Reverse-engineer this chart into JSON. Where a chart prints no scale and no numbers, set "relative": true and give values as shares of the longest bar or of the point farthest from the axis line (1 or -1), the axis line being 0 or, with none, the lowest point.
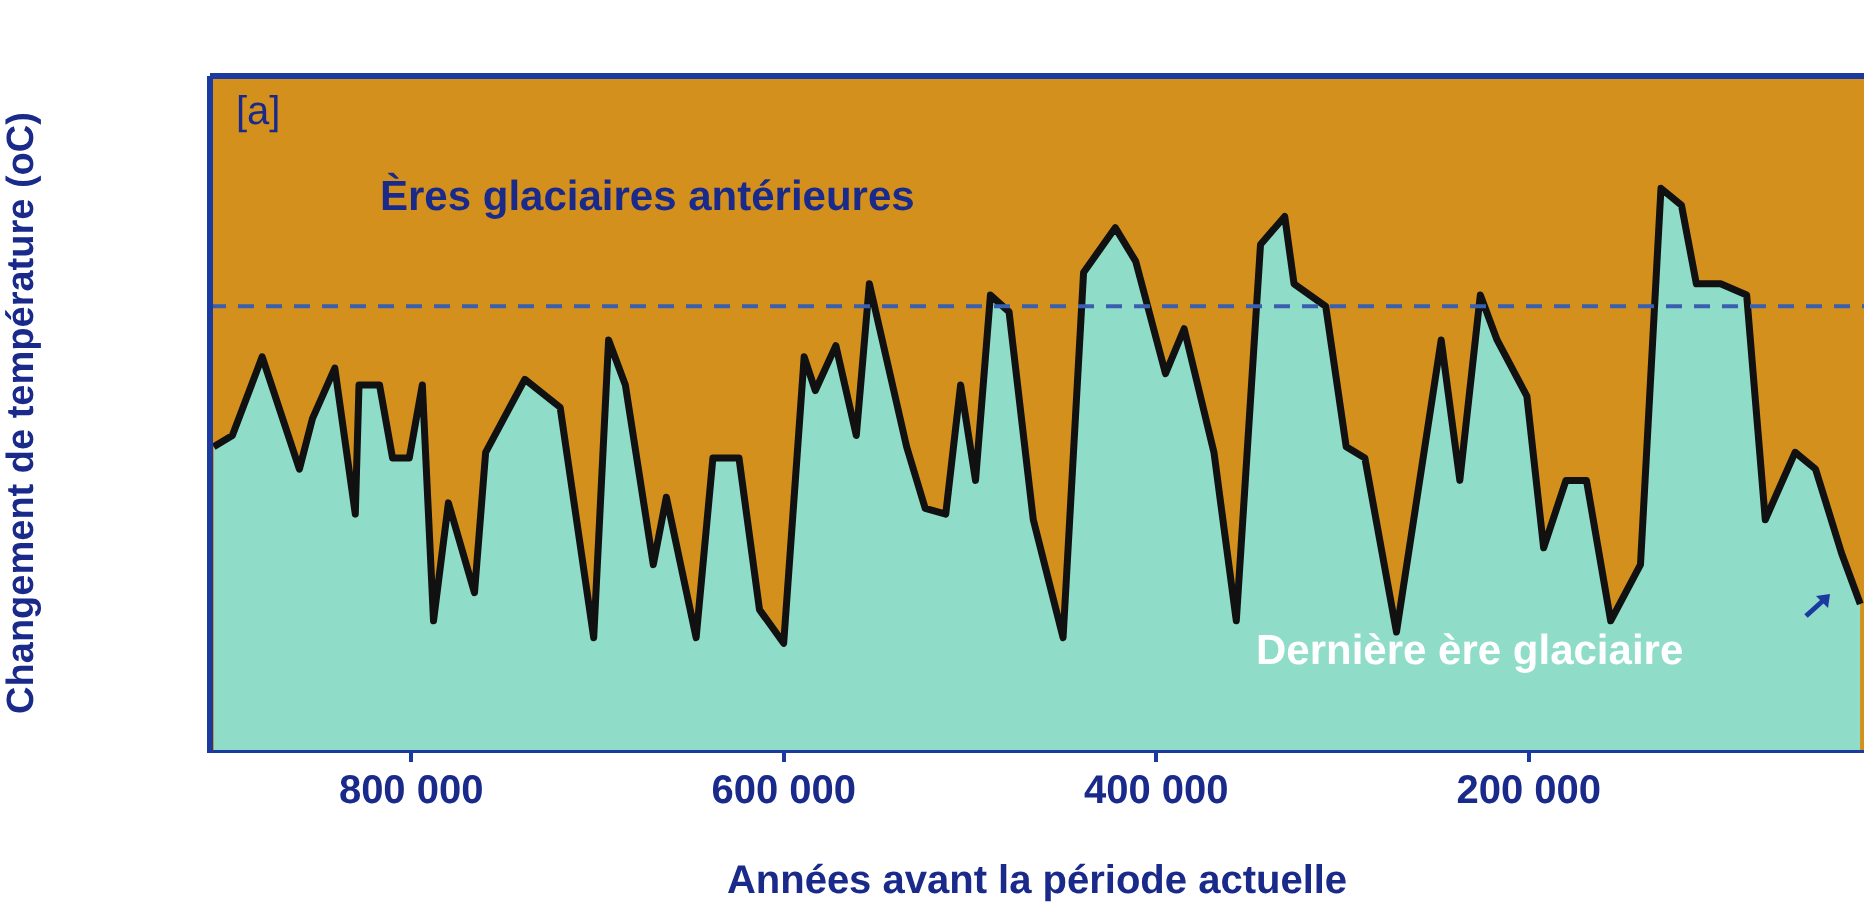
{
  "chart_data": {
    "type": "area",
    "relative": true,
    "xlabel": "Années avant la période actuelle",
    "ylabel": "Changement de température (oC)",
    "xlim": [
      908000,
      20000
    ],
    "xticks": [
      {
        "value": 800000,
        "label": "800 000"
      },
      {
        "value": 600000,
        "label": "600 000"
      },
      {
        "value": 400000,
        "label": "400 000"
      },
      {
        "value": 200000,
        "label": "200 000"
      }
    ],
    "x": [
      906000,
      896000,
      880000,
      860000,
      853000,
      841000,
      830000,
      828000,
      817000,
      810000,
      801000,
      794000,
      788000,
      780000,
      766000,
      760000,
      739000,
      720000,
      702000,
      694000,
      685000,
      670000,
      663000,
      647000,
      638000,
      624000,
      613000,
      600000,
      589000,
      583000,
      572000,
      561000,
      554000,
      534000,
      524000,
      513000,
      505000,
      497000,
      489000,
      479000,
      466000,
      450000,
      439000,
      422000,
      411000,
      395000,
      385000,
      369000,
      357000,
      344000,
      331000,
      326000,
      309000,
      298000,
      288000,
      271000,
      247000,
      237000,
      226000,
      217000,
      201000,
      192000,
      180000,
      169000,
      156000,
      140000,
      129000,
      118000,
      110000,
      97000,
      83000,
      73000,
      57000,
      46000,
      32000,
      22000
    ],
    "series": [
      {
        "color": "#8fdcc8",
        "values": [
          0.54,
          0.56,
          0.7,
          0.5,
          0.59,
          0.68,
          0.42,
          0.65,
          0.65,
          0.52,
          0.52,
          0.65,
          0.23,
          0.44,
          0.28,
          0.53,
          0.66,
          0.61,
          0.2,
          0.73,
          0.65,
          0.33,
          0.45,
          0.2,
          0.52,
          0.52,
          0.25,
          0.19,
          0.7,
          0.64,
          0.72,
          0.56,
          0.83,
          0.54,
          0.43,
          0.42,
          0.65,
          0.48,
          0.81,
          0.78,
          0.41,
          0.2,
          0.85,
          0.93,
          0.87,
          0.67,
          0.75,
          0.53,
          0.23,
          0.9,
          0.95,
          0.83,
          0.79,
          0.54,
          0.52,
          0.21,
          0.73,
          0.48,
          0.81,
          0.73,
          0.63,
          0.36,
          0.48,
          0.48,
          0.23,
          0.33,
          1,
          0.97,
          0.83,
          0.83,
          0.81,
          0.41,
          0.53,
          0.5,
          0.35,
          0.26
        ]
      }
    ],
    "ref_lines": [
      {
        "axis": "y",
        "value": 0.79,
        "color": "#3a5fb0",
        "line_style": "dashed"
      }
    ],
    "annotations": [
      "[a]",
      "Ères glaciaires antérieures",
      "Dernière ère glaciaire"
    ],
    "grid": false,
    "legend": false
  }
}
